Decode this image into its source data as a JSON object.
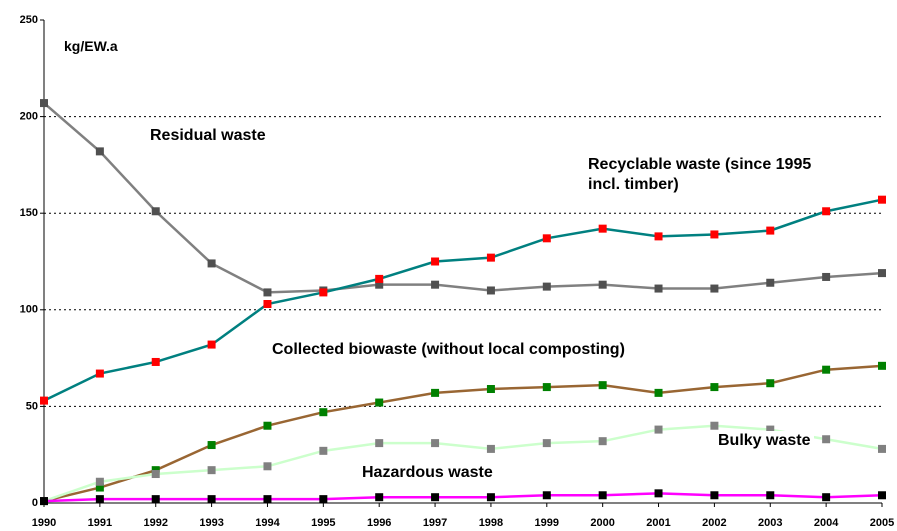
{
  "chart_data": {
    "type": "line",
    "unit_label": "kg/EW.a",
    "categories": [
      "1990",
      "1991",
      "1992",
      "1993",
      "1994",
      "1995",
      "1996",
      "1997",
      "1998",
      "1999",
      "2000",
      "2001",
      "2002",
      "2003",
      "2004",
      "2005"
    ],
    "series": [
      {
        "name": "Residual waste",
        "color": "#808080",
        "marker_color": "#505050",
        "values": [
          207,
          182,
          151,
          124,
          109,
          110,
          113,
          113,
          110,
          112,
          113,
          111,
          111,
          114,
          117,
          119
        ]
      },
      {
        "name": "Recyclable waste (since 1995 incl. timber)",
        "color": "#008080",
        "marker_color": "#ff0000",
        "values": [
          53,
          67,
          73,
          82,
          103,
          109,
          116,
          125,
          127,
          137,
          142,
          138,
          139,
          141,
          151,
          157
        ]
      },
      {
        "name": "Collected biowaste (without local composting)",
        "color": "#996633",
        "marker_color": "#008000",
        "values": [
          1,
          8,
          17,
          30,
          40,
          47,
          52,
          57,
          59,
          60,
          61,
          57,
          60,
          62,
          69,
          71
        ]
      },
      {
        "name": "Bulky waste",
        "color": "#ccffcc",
        "marker_color": "#808080",
        "values": [
          1,
          11,
          15,
          17,
          19,
          27,
          31,
          31,
          28,
          31,
          32,
          38,
          40,
          38,
          33,
          28
        ]
      },
      {
        "name": "Hazardous waste",
        "color": "#ff00ff",
        "marker_color": "#000000",
        "values": [
          1,
          2,
          2,
          2,
          2,
          2,
          3,
          3,
          3,
          4,
          4,
          5,
          4,
          4,
          3,
          4
        ]
      }
    ],
    "ylim": [
      0,
      250
    ],
    "yticks": [
      0,
      50,
      100,
      150,
      200,
      250
    ],
    "grid": true
  }
}
